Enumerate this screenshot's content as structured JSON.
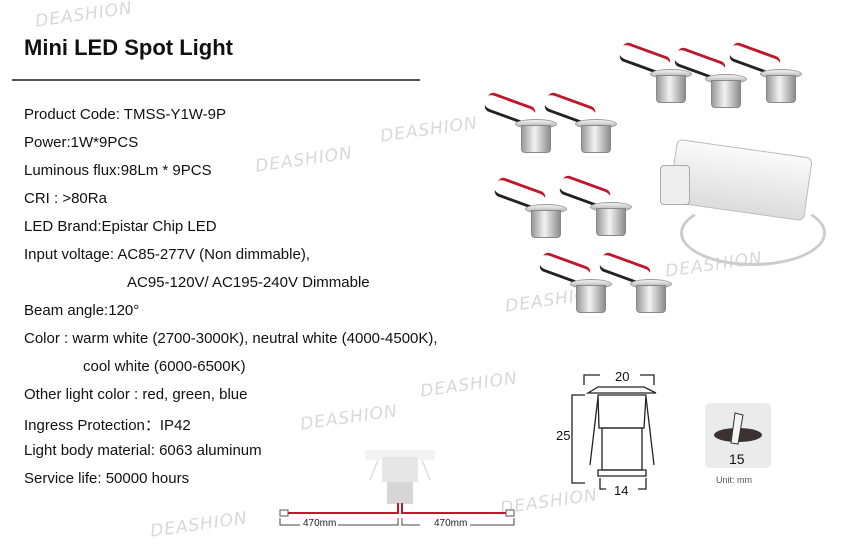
{
  "title": "Mini LED Spot Light",
  "watermark": "DEASHION",
  "specs": [
    "Product Code: TMSS-Y1W-9P",
    "Power:1W*9PCS",
    "Luminous flux:98Lm * 9PCS",
    "CRI : >80Ra",
    "LED Brand:Epistar Chip LED",
    "Input voltage: AC85-277V (Non dimmable),",
    "AC95-120V/ AC195-240V Dimmable",
    "Beam angle:120°",
    "Color : warm white (2700-3000K), neutral white (4000-4500K),",
    "cool white (6000-6500K)",
    "Other light color : red, green, blue",
    "Ingress Protection：IP42",
    "Light body material: 6063 aluminum",
    "Service life: 50000 hours"
  ],
  "dimensions": {
    "top_width": "20",
    "height": "25",
    "bottom_width": "14",
    "cutout": "15",
    "unit": "Unit: mm",
    "cable_left": "470mm",
    "cable_right": "470mm"
  },
  "colors": {
    "wire_red": "#c0182a",
    "wire_black": "#222222",
    "watermark": "#d8d8d8"
  }
}
